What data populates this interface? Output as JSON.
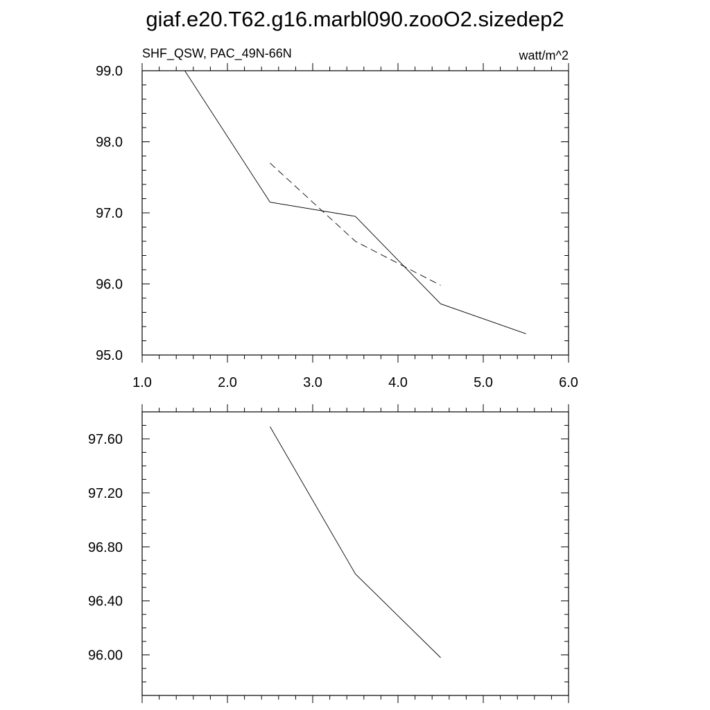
{
  "title": "giaf.e20.T62.g16.marbl090.zooO2.sizedep2",
  "chart_data": [
    {
      "type": "line",
      "left_label": "SHF_QSW, PAC_49N-66N",
      "right_label": "watt/m^2",
      "xlim": [
        1.0,
        6.0
      ],
      "ylim": [
        95.0,
        99.0
      ],
      "x_ticks": [
        "1.0",
        "2.0",
        "3.0",
        "4.0",
        "5.0",
        "6.0"
      ],
      "y_ticks": [
        "95.0",
        "96.0",
        "97.0",
        "98.0",
        "99.0"
      ],
      "x_tick_values": [
        1,
        2,
        3,
        4,
        5,
        6
      ],
      "y_tick_values": [
        95,
        96,
        97,
        98,
        99
      ],
      "series": [
        {
          "style": "solid",
          "x": [
            1.5,
            2.5,
            3.5,
            4.5,
            5.5
          ],
          "y": [
            99.0,
            97.15,
            96.95,
            95.72,
            95.3
          ]
        },
        {
          "style": "dashed",
          "x": [
            2.5,
            3.5,
            4.5
          ],
          "y": [
            97.7,
            96.6,
            95.98
          ]
        }
      ]
    },
    {
      "type": "line",
      "xlim": [
        1.0,
        6.0
      ],
      "ylim": [
        95.7,
        97.8
      ],
      "y_ticks": [
        "96.00",
        "96.40",
        "96.80",
        "97.20",
        "97.60"
      ],
      "y_tick_values": [
        96.0,
        96.4,
        96.8,
        97.2,
        97.6
      ],
      "x_tick_values": [
        1,
        2,
        3,
        4,
        5,
        6
      ],
      "series": [
        {
          "style": "solid",
          "x": [
            2.5,
            3.5,
            4.5
          ],
          "y": [
            97.69,
            96.6,
            95.98
          ]
        }
      ]
    }
  ]
}
